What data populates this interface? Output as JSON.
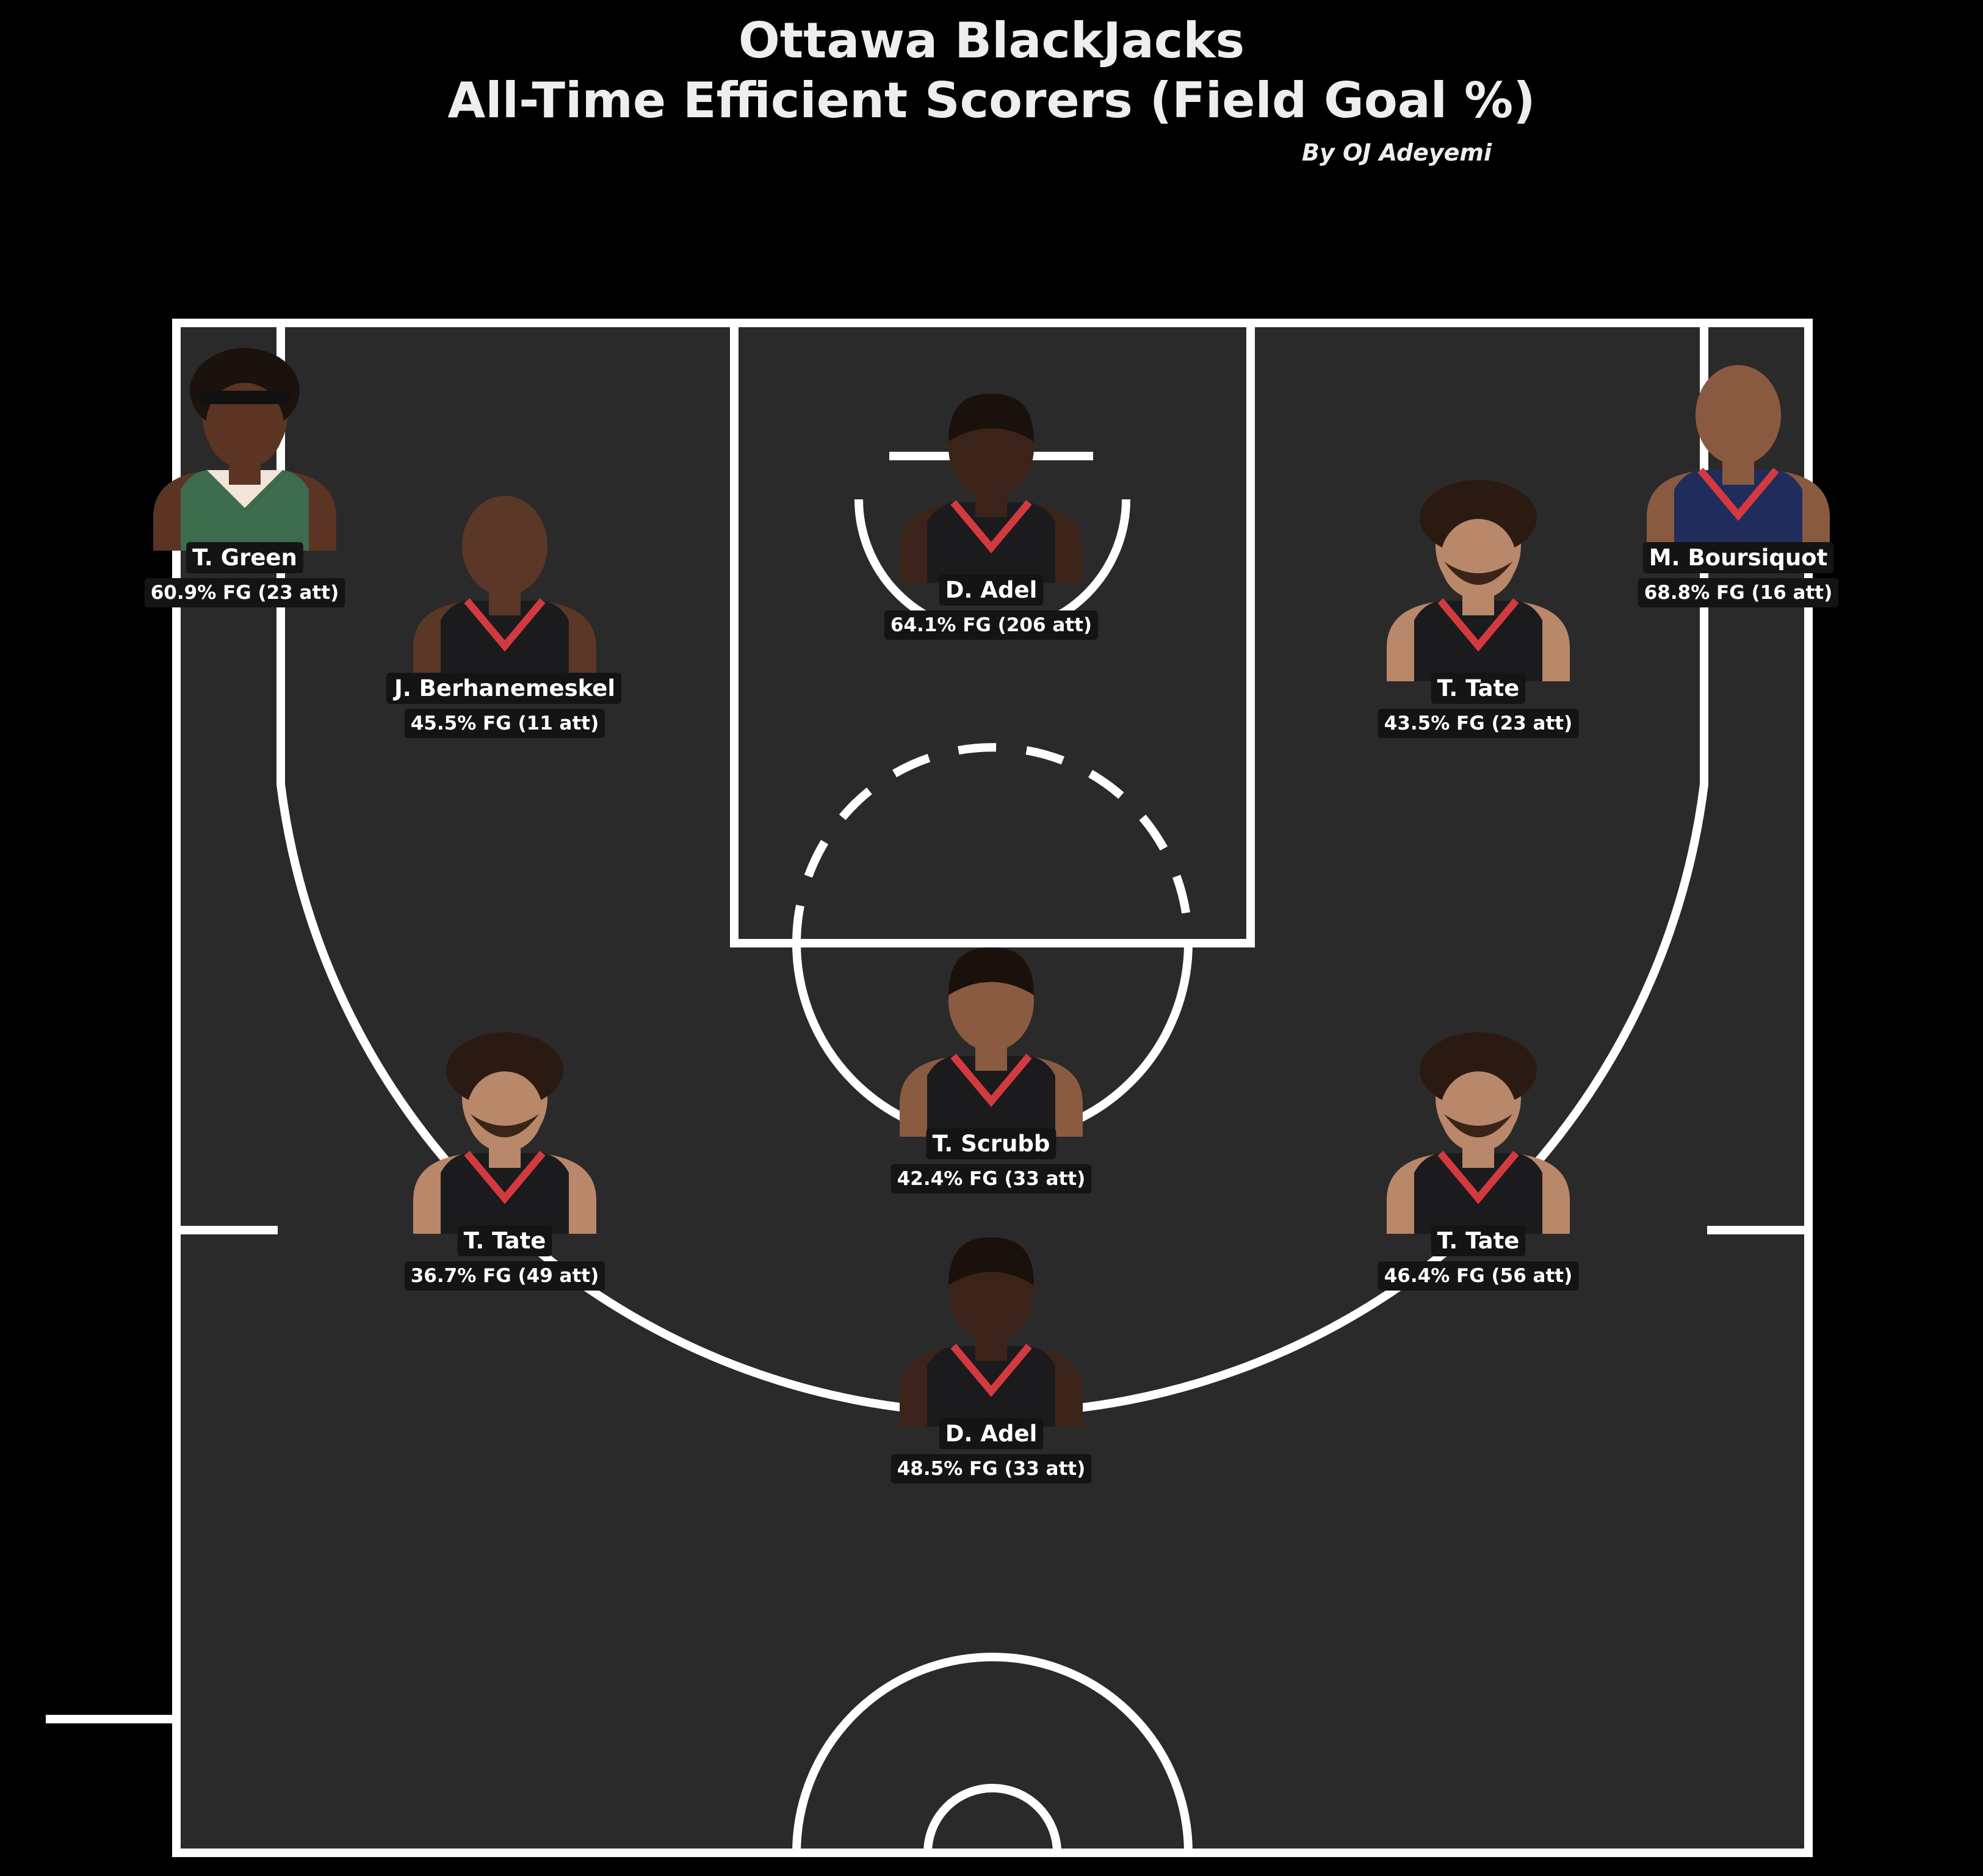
{
  "header": {
    "title_line1": "Ottawa BlackJacks",
    "title_line2": "All-Time Efficient Scorers (Field Goal %)",
    "byline": "By OJ Adeyemi"
  },
  "colors": {
    "background": "#000000",
    "court": "#2a2a2a",
    "lines": "#ffffff",
    "label_box": "#141414",
    "text": "#ffffff",
    "jersey_blackjacks": "#1b1b1d",
    "jersey_trim": "#d33a3f",
    "jersey_green": "#3d6b4e",
    "jersey_navy": "#1f2c5c"
  },
  "chart_data": {
    "type": "scatter",
    "title": "Ottawa BlackJacks All-Time Efficient Scorers (Field Goal %)",
    "subtitle": "By OJ Adeyemi",
    "zones": [
      {
        "zone": "left-corner",
        "player": "T. Green",
        "fg_pct": 60.9,
        "attempts": 23,
        "label": "60.9% FG (23 att)",
        "jersey": "green",
        "skin": "#5b3424",
        "hair": "dreads"
      },
      {
        "zone": "left-wing-mid",
        "player": "J. Berhanemeskel",
        "fg_pct": 45.5,
        "attempts": 11,
        "label": "45.5% FG (11 att)",
        "jersey": "blackjacks",
        "skin": "#5a3727",
        "hair": "bald"
      },
      {
        "zone": "restricted-area",
        "player": "D. Adel",
        "fg_pct": 64.1,
        "attempts": 206,
        "label": "64.1% FG (206 att)",
        "jersey": "blackjacks",
        "skin": "#3c2319",
        "hair": "short"
      },
      {
        "zone": "right-wing-mid",
        "player": "T. Tate",
        "fg_pct": 43.5,
        "attempts": 23,
        "label": "43.5% FG (23 att)",
        "jersey": "blackjacks",
        "skin": "#b9876a",
        "hair": "curly"
      },
      {
        "zone": "right-corner",
        "player": "M. Boursiquot",
        "fg_pct": 68.8,
        "attempts": 16,
        "label": "68.8% FG (16 att)",
        "jersey": "navy",
        "skin": "#8a5a40",
        "hair": "bald"
      },
      {
        "zone": "top-of-key",
        "player": "T. Scrubb",
        "fg_pct": 42.4,
        "attempts": 33,
        "label": "42.4% FG (33 att)",
        "jersey": "blackjacks",
        "skin": "#8a5b40",
        "hair": "short"
      },
      {
        "zone": "left-wing-3",
        "player": "T. Tate",
        "fg_pct": 36.7,
        "attempts": 49,
        "label": "36.7% FG (49 att)",
        "jersey": "blackjacks",
        "skin": "#b9876a",
        "hair": "curly"
      },
      {
        "zone": "right-wing-3",
        "player": "T. Tate",
        "fg_pct": 46.4,
        "attempts": 56,
        "label": "46.4% FG (56 att)",
        "jersey": "blackjacks",
        "skin": "#b9876a",
        "hair": "curly"
      },
      {
        "zone": "top-3",
        "player": "D. Adel",
        "fg_pct": 48.5,
        "attempts": 33,
        "label": "48.5% FG (33 att)",
        "jersey": "blackjacks",
        "skin": "#3c2319",
        "hair": "short"
      }
    ]
  }
}
